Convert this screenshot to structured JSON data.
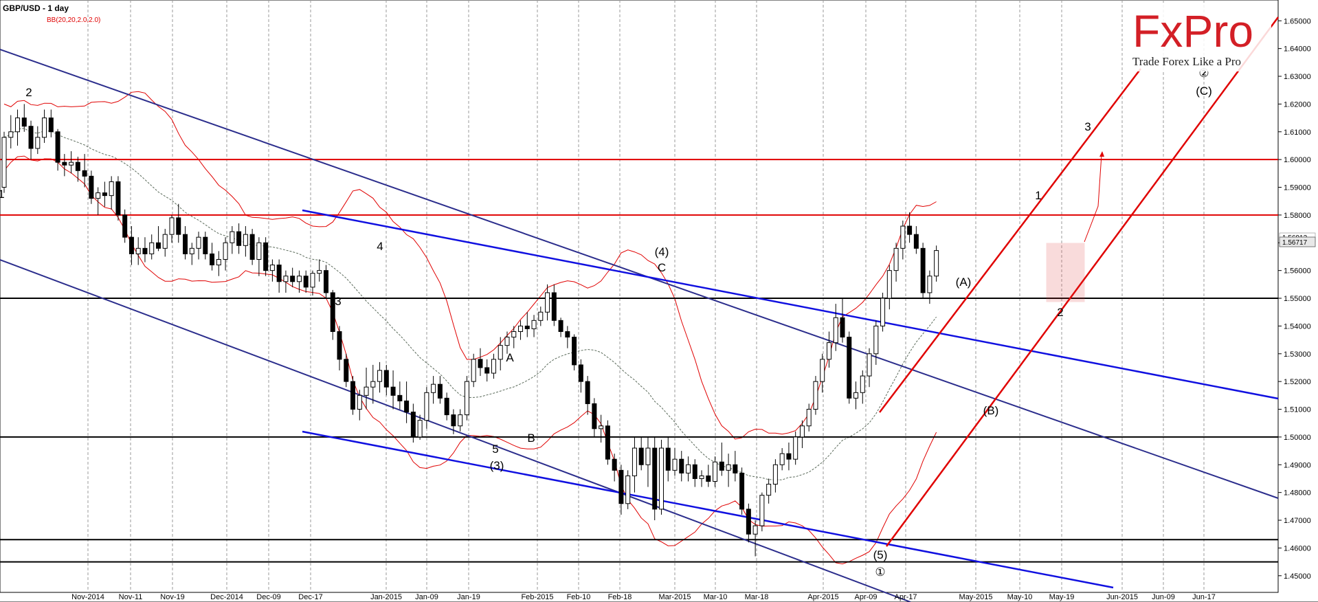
{
  "chart_data": {
    "type": "candlestick",
    "title": "GBP/USD - 1 day",
    "indicator_label": "BB(20,20,2.0,2.0)",
    "ylim": [
      1.444,
      1.657
    ],
    "y_ticks": [
      "1.65000",
      "1.64000",
      "1.63000",
      "1.62000",
      "1.61000",
      "1.60000",
      "1.59000",
      "1.58000",
      "1.57000",
      "1.56000",
      "1.55000",
      "1.54000",
      "1.53000",
      "1.52000",
      "1.51000",
      "1.50000",
      "1.49000",
      "1.48000",
      "1.47000",
      "1.46000",
      "1.45000"
    ],
    "x_ticks": [
      "Nov-2014",
      "Nov-11",
      "Nov-19",
      "Dec-2014",
      "Dec-09",
      "Dec-17",
      "Jan-2015",
      "Jan-09",
      "Jan-19",
      "Feb-2015",
      "Feb-10",
      "Feb-18",
      "Mar-2015",
      "Mar-10",
      "Mar-18",
      "Apr-2015",
      "Apr-09",
      "Apr-17",
      "May-2015",
      "May-10",
      "May-19",
      "Jun-2015",
      "Jun-09",
      "Jun-17"
    ],
    "last_price": "1.56717",
    "price_tag_secondary": "1.56912",
    "candles": [
      [
        1.59,
        1.61,
        1.588,
        1.608
      ],
      [
        1.608,
        1.616,
        1.604,
        1.61
      ],
      [
        1.61,
        1.618,
        1.605,
        1.615
      ],
      [
        1.615,
        1.62,
        1.61,
        1.612
      ],
      [
        1.612,
        1.614,
        1.6,
        1.604
      ],
      [
        1.604,
        1.612,
        1.602,
        1.608
      ],
      [
        1.608,
        1.618,
        1.606,
        1.615
      ],
      [
        1.615,
        1.618,
        1.608,
        1.61
      ],
      [
        1.61,
        1.611,
        1.596,
        1.599
      ],
      [
        1.599,
        1.602,
        1.594,
        1.598
      ],
      [
        1.598,
        1.603,
        1.595,
        1.599
      ],
      [
        1.599,
        1.601,
        1.592,
        1.596
      ],
      [
        1.596,
        1.602,
        1.59,
        1.594
      ],
      [
        1.594,
        1.596,
        1.584,
        1.586
      ],
      [
        1.586,
        1.59,
        1.58,
        1.588
      ],
      [
        1.588,
        1.592,
        1.583,
        1.587
      ],
      [
        1.587,
        1.594,
        1.582,
        1.592
      ],
      [
        1.592,
        1.594,
        1.578,
        1.58
      ],
      [
        1.58,
        1.582,
        1.57,
        1.572
      ],
      [
        1.572,
        1.576,
        1.562,
        1.566
      ],
      [
        1.566,
        1.572,
        1.562,
        1.568
      ],
      [
        1.568,
        1.572,
        1.563,
        1.566
      ],
      [
        1.566,
        1.573,
        1.564,
        1.57
      ],
      [
        1.57,
        1.576,
        1.567,
        1.568
      ],
      [
        1.568,
        1.575,
        1.565,
        1.573
      ],
      [
        1.573,
        1.58,
        1.57,
        1.579
      ],
      [
        1.579,
        1.584,
        1.57,
        1.573
      ],
      [
        1.573,
        1.576,
        1.564,
        1.566
      ],
      [
        1.566,
        1.57,
        1.562,
        1.568
      ],
      [
        1.568,
        1.574,
        1.564,
        1.572
      ],
      [
        1.572,
        1.574,
        1.564,
        1.566
      ],
      [
        1.566,
        1.57,
        1.56,
        1.562
      ],
      [
        1.562,
        1.567,
        1.558,
        1.564
      ],
      [
        1.564,
        1.572,
        1.56,
        1.57
      ],
      [
        1.57,
        1.576,
        1.566,
        1.574
      ],
      [
        1.574,
        1.577,
        1.566,
        1.569
      ],
      [
        1.569,
        1.576,
        1.565,
        1.573
      ],
      [
        1.573,
        1.575,
        1.562,
        1.564
      ],
      [
        1.564,
        1.572,
        1.558,
        1.57
      ],
      [
        1.57,
        1.572,
        1.558,
        1.56
      ],
      [
        1.56,
        1.564,
        1.556,
        1.562
      ],
      [
        1.562,
        1.564,
        1.552,
        1.556
      ],
      [
        1.556,
        1.56,
        1.552,
        1.558
      ],
      [
        1.558,
        1.561,
        1.554,
        1.556
      ],
      [
        1.556,
        1.56,
        1.552,
        1.558
      ],
      [
        1.558,
        1.56,
        1.552,
        1.554
      ],
      [
        1.554,
        1.56,
        1.551,
        1.559
      ],
      [
        1.559,
        1.564,
        1.556,
        1.56
      ],
      [
        1.56,
        1.562,
        1.55,
        1.552
      ],
      [
        1.552,
        1.553,
        1.535,
        1.538
      ],
      [
        1.538,
        1.54,
        1.524,
        1.528
      ],
      [
        1.528,
        1.53,
        1.518,
        1.52
      ],
      [
        1.52,
        1.522,
        1.508,
        1.51
      ],
      [
        1.51,
        1.517,
        1.506,
        1.515
      ],
      [
        1.515,
        1.525,
        1.51,
        1.518
      ],
      [
        1.518,
        1.526,
        1.512,
        1.52
      ],
      [
        1.52,
        1.527,
        1.516,
        1.524
      ],
      [
        1.524,
        1.526,
        1.515,
        1.518
      ],
      [
        1.518,
        1.524,
        1.51,
        1.515
      ],
      [
        1.515,
        1.52,
        1.51,
        1.513
      ],
      [
        1.513,
        1.52,
        1.505,
        1.509
      ],
      [
        1.509,
        1.512,
        1.498,
        1.5
      ],
      [
        1.5,
        1.508,
        1.499,
        1.506
      ],
      [
        1.506,
        1.518,
        1.503,
        1.516
      ],
      [
        1.516,
        1.522,
        1.512,
        1.519
      ],
      [
        1.519,
        1.522,
        1.512,
        1.514
      ],
      [
        1.514,
        1.516,
        1.506,
        1.508
      ],
      [
        1.508,
        1.51,
        1.501,
        1.504
      ],
      [
        1.504,
        1.51,
        1.502,
        1.508
      ],
      [
        1.508,
        1.522,
        1.506,
        1.52
      ],
      [
        1.52,
        1.53,
        1.518,
        1.528
      ],
      [
        1.528,
        1.532,
        1.522,
        1.525
      ],
      [
        1.525,
        1.528,
        1.52,
        1.523
      ],
      [
        1.523,
        1.53,
        1.521,
        1.528
      ],
      [
        1.528,
        1.536,
        1.524,
        1.533
      ],
      [
        1.533,
        1.538,
        1.53,
        1.536
      ],
      [
        1.536,
        1.54,
        1.532,
        1.538
      ],
      [
        1.538,
        1.542,
        1.535,
        1.54
      ],
      [
        1.54,
        1.545,
        1.536,
        1.539
      ],
      [
        1.539,
        1.544,
        1.536,
        1.542
      ],
      [
        1.542,
        1.547,
        1.54,
        1.545
      ],
      [
        1.545,
        1.555,
        1.542,
        1.552
      ],
      [
        1.552,
        1.555,
        1.54,
        1.542
      ],
      [
        1.542,
        1.543,
        1.536,
        1.538
      ],
      [
        1.538,
        1.54,
        1.532,
        1.536
      ],
      [
        1.536,
        1.537,
        1.524,
        1.526
      ],
      [
        1.526,
        1.528,
        1.516,
        1.52
      ],
      [
        1.52,
        1.522,
        1.508,
        1.512
      ],
      [
        1.512,
        1.514,
        1.5,
        1.503
      ],
      [
        1.503,
        1.508,
        1.498,
        1.504
      ],
      [
        1.504,
        1.506,
        1.49,
        1.492
      ],
      [
        1.492,
        1.494,
        1.484,
        1.488
      ],
      [
        1.488,
        1.49,
        1.472,
        1.476
      ],
      [
        1.476,
        1.488,
        1.474,
        1.486
      ],
      [
        1.486,
        1.5,
        1.48,
        1.496
      ],
      [
        1.496,
        1.5,
        1.488,
        1.49
      ],
      [
        1.49,
        1.5,
        1.482,
        1.496
      ],
      [
        1.496,
        1.5,
        1.47,
        1.474
      ],
      [
        1.474,
        1.499,
        1.472,
        1.496
      ],
      [
        1.496,
        1.5,
        1.484,
        1.488
      ],
      [
        1.488,
        1.496,
        1.486,
        1.492
      ],
      [
        1.492,
        1.495,
        1.484,
        1.487
      ],
      [
        1.487,
        1.493,
        1.484,
        1.49
      ],
      [
        1.49,
        1.492,
        1.482,
        1.485
      ],
      [
        1.485,
        1.488,
        1.482,
        1.486
      ],
      [
        1.486,
        1.49,
        1.482,
        1.484
      ],
      [
        1.484,
        1.493,
        1.482,
        1.491
      ],
      [
        1.491,
        1.498,
        1.486,
        1.488
      ],
      [
        1.488,
        1.494,
        1.482,
        1.49
      ],
      [
        1.49,
        1.495,
        1.484,
        1.487
      ],
      [
        1.487,
        1.489,
        1.472,
        1.474
      ],
      [
        1.474,
        1.476,
        1.462,
        1.465
      ],
      [
        1.465,
        1.47,
        1.457,
        1.468
      ],
      [
        1.468,
        1.48,
        1.466,
        1.479
      ],
      [
        1.479,
        1.485,
        1.476,
        1.483
      ],
      [
        1.483,
        1.492,
        1.48,
        1.49
      ],
      [
        1.49,
        1.496,
        1.488,
        1.494
      ],
      [
        1.494,
        1.498,
        1.488,
        1.492
      ],
      [
        1.492,
        1.502,
        1.49,
        1.5
      ],
      [
        1.5,
        1.506,
        1.496,
        1.504
      ],
      [
        1.504,
        1.512,
        1.502,
        1.51
      ],
      [
        1.51,
        1.522,
        1.508,
        1.52
      ],
      [
        1.52,
        1.53,
        1.516,
        1.528
      ],
      [
        1.528,
        1.538,
        1.525,
        1.534
      ],
      [
        1.534,
        1.548,
        1.531,
        1.543
      ],
      [
        1.543,
        1.55,
        1.534,
        1.536
      ],
      [
        1.536,
        1.538,
        1.512,
        1.514
      ],
      [
        1.514,
        1.52,
        1.51,
        1.516
      ],
      [
        1.516,
        1.524,
        1.512,
        1.522
      ],
      [
        1.522,
        1.532,
        1.518,
        1.53
      ],
      [
        1.53,
        1.542,
        1.526,
        1.54
      ],
      [
        1.54,
        1.552,
        1.538,
        1.55
      ],
      [
        1.55,
        1.562,
        1.546,
        1.56
      ],
      [
        1.56,
        1.57,
        1.556,
        1.568
      ],
      [
        1.568,
        1.578,
        1.564,
        1.576
      ],
      [
        1.576,
        1.581,
        1.57,
        1.573
      ],
      [
        1.573,
        1.576,
        1.566,
        1.568
      ],
      [
        1.568,
        1.57,
        1.55,
        1.552
      ],
      [
        1.552,
        1.56,
        1.548,
        1.558
      ],
      [
        1.558,
        1.569,
        1.556,
        1.5672
      ]
    ],
    "horizontal_levels": [
      {
        "value": 1.6,
        "color": "#e00000"
      },
      {
        "value": 1.58,
        "color": "#e00000"
      },
      {
        "value": 1.55,
        "color": "#000000"
      },
      {
        "value": 1.5,
        "color": "#000000"
      },
      {
        "value": 1.463,
        "color": "#000000"
      },
      {
        "value": 1.455,
        "color": "#000000"
      }
    ],
    "wave_labels": [
      "2",
      "1",
      "4",
      "3",
      "(4)",
      "C",
      "A",
      "5",
      "(3)",
      "B",
      "(A)",
      "(B)",
      "1",
      "2",
      "3",
      "(5)",
      "①",
      "②",
      "(C)"
    ],
    "colors": {
      "bull": "#ffffff",
      "bear": "#000000",
      "bollinger": "#e00000",
      "midline": "#5a6a5a",
      "channel_navy": "#2b2d8c",
      "channel_blue": "#1010e0",
      "trend_red": "#e00000"
    }
  },
  "branding": {
    "logo_text": "FxPro",
    "tagline": "Trade Forex Like a Pro"
  }
}
